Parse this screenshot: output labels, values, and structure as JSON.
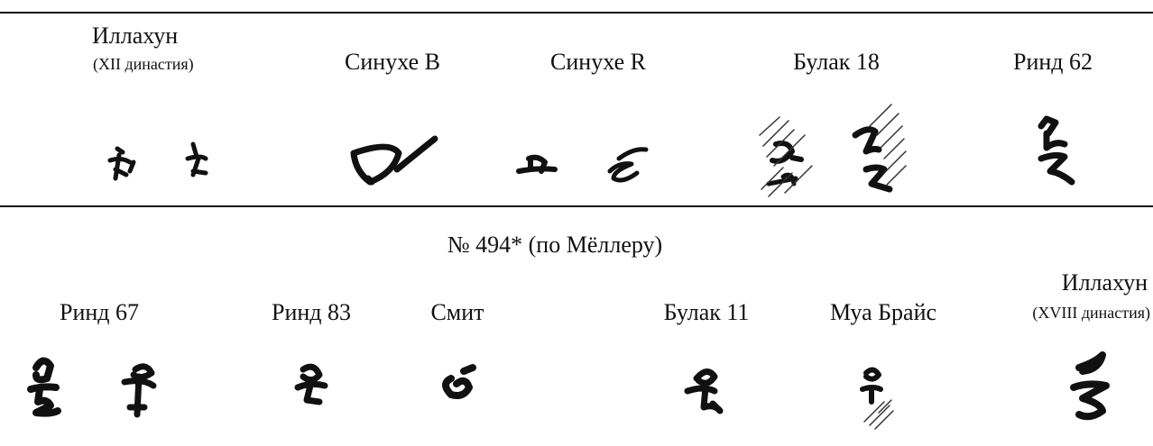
{
  "top_row": [
    {
      "label": "Иллахун",
      "sublabel": "(XII династия)"
    },
    {
      "label": "Синухе B"
    },
    {
      "label": "Синухе R"
    },
    {
      "label": "Булак 18"
    },
    {
      "label": "Ринд 62"
    }
  ],
  "caption": "№ 494* (по Мёллеру)",
  "bottom_row": [
    {
      "label": "Ринд 67"
    },
    {
      "label": "Ринд 83"
    },
    {
      "label": "Смит"
    },
    {
      "label": "Булак 11"
    },
    {
      "label": "Муа Брайс"
    },
    {
      "label": "Иллахун",
      "sublabel": "(XVIII династия)"
    }
  ]
}
